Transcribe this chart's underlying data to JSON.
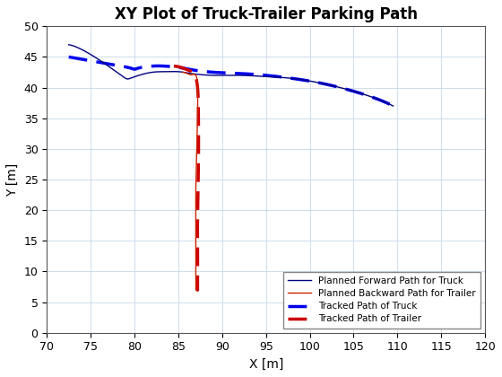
{
  "title": "XY Plot of Truck-Trailer Parking Path",
  "xlabel": "X [m]",
  "ylabel": "Y [m]",
  "xlim": [
    70,
    120
  ],
  "ylim": [
    0,
    50
  ],
  "xticks": [
    70,
    75,
    80,
    85,
    90,
    95,
    100,
    105,
    110,
    115,
    120
  ],
  "yticks": [
    0,
    5,
    10,
    15,
    20,
    25,
    30,
    35,
    40,
    45,
    50
  ],
  "background_color": "#ffffff",
  "grid_color": "#c8d8e8",
  "planned_truck_color": "#000080",
  "planned_trailer_color": "#cc2200",
  "tracked_truck_color": "#0000ee",
  "tracked_trailer_color": "#cc0000",
  "planned_truck_lw": 1.0,
  "planned_trailer_lw": 1.0,
  "tracked_truck_lw": 2.5,
  "tracked_trailer_lw": 2.5,
  "title_fontsize": 12,
  "label_fontsize": 10,
  "tick_fontsize": 9
}
